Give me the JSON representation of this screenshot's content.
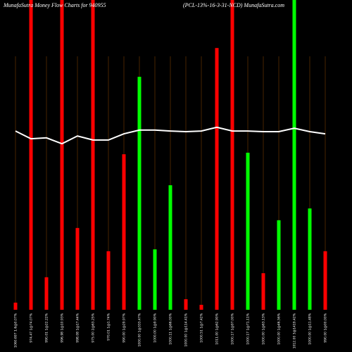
{
  "chart_data": {
    "type": "bar",
    "title": "MunafaSutra  Money Flow  Charts for 940955",
    "subtitle": "(PCL-13%-16-3-31-NCD) MunafaSutra.com",
    "categories": [
      "1060.697 1.6@0.07%",
      "974.47 1@74.07%",
      "990.01 1@22.22%",
      "996.98 1@10.93%",
      "998.08 1@17.44%",
      "975.00 2@63.25%",
      "970.01 1@1.74%",
      "990.00 1@29.97%",
      "1000.00 1@333.47%",
      "1000.00 1@9.90%",
      "1000.11 1@66.00%",
      "1000.00 1@114.41%",
      "1000.51 1@7.42%",
      "1011.00 1@62.90%",
      "1000.17 1@97.00%",
      "1000.17 1@71.11%",
      "1000.00 1@63.13%",
      "1000.00 1@46.56%",
      "1012.00 3@1419.42%",
      "1000.00 1@11.48%",
      "990.00 1@00.00%"
    ],
    "values": [
      2.3,
      100,
      10.5,
      100,
      26.4,
      100,
      18.9,
      50.2,
      75.2,
      19.5,
      40.2,
      3.4,
      1.6,
      84.5,
      100,
      50.7,
      11.8,
      28.9,
      100,
      32.7,
      18.9
    ],
    "colors": [
      "#ff0000",
      "#ff0000",
      "#ff0000",
      "#ff0000",
      "#ff0000",
      "#ff0000",
      "#ff0000",
      "#ff0000",
      "#00ff00",
      "#00ff00",
      "#00ff00",
      "#ff0000",
      "#ff0000",
      "#ff0000",
      "#ff0000",
      "#00ff00",
      "#ff0000",
      "#00ff00",
      "#00ff00",
      "#00ff00",
      "#ff0000"
    ],
    "line": {
      "color": "#ffffff",
      "values": [
        57.7,
        55.2,
        55.5,
        53.6,
        56.1,
        54.8,
        54.8,
        56.8,
        58.0,
        58.0,
        57.7,
        57.5,
        57.7,
        58.9,
        57.7,
        57.7,
        57.5,
        57.5,
        58.6,
        57.5,
        56.8
      ]
    },
    "ylim": [
      0,
      100
    ],
    "grid": true,
    "grid_color": "#7a3c00"
  }
}
